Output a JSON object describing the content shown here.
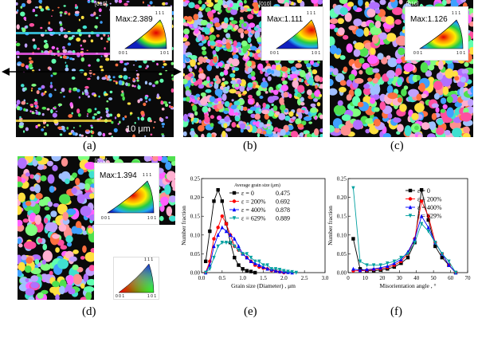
{
  "figure": {
    "panels": [
      {
        "id": "a",
        "label": "(a)",
        "dir": "[010]",
        "max": "Max:2.389",
        "ipf_corners": [
          "1 1 1",
          "0 0 1",
          "1 0 1"
        ],
        "scale": "10 μm"
      },
      {
        "id": "b",
        "label": "(b)",
        "dir": "[010]",
        "max": "Max:1.111",
        "ipf_corners": [
          "1 1 1",
          "0 0 1",
          "1 0 1"
        ]
      },
      {
        "id": "c",
        "label": "(c)",
        "dir": "[010]",
        "max": "Max:1.126",
        "ipf_corners": [
          "1 1 1",
          "0 0 1",
          "1 0 1"
        ]
      },
      {
        "id": "d",
        "label": "(d)",
        "dir": "[010]",
        "max": "Max:1.394",
        "ipf_corners": [
          "1 1 1",
          "0 0 1",
          "1 0 1"
        ],
        "key_corners": [
          "1 1 1",
          "0 0 1",
          "1 0 1"
        ]
      },
      {
        "id": "e",
        "label": "(e)"
      },
      {
        "id": "f",
        "label": "(f)"
      }
    ]
  },
  "chart_data": [
    {
      "type": "line",
      "panel": "e",
      "xlabel": "Grain size (Diameter) , μm",
      "ylabel": "Number fraction",
      "xlim": [
        0.0,
        3.0
      ],
      "ylim": [
        0.0,
        0.25
      ],
      "xticks": [
        "0.0",
        "0.5",
        "1.0",
        "1.5",
        "2.0",
        "2.5",
        "3.0"
      ],
      "yticks": [
        "0.00",
        "0.05",
        "0.10",
        "0.15",
        "0.20",
        "0.25"
      ],
      "legend_title": "Average grain size (μm)",
      "series": [
        {
          "name": "ε = 0",
          "avg": "0.475",
          "color": "#000000",
          "marker": "square",
          "x": [
            0.1,
            0.2,
            0.3,
            0.4,
            0.5,
            0.6,
            0.7,
            0.8,
            0.9,
            1.0,
            1.1,
            1.2,
            1.3
          ],
          "y": [
            0.03,
            0.11,
            0.19,
            0.22,
            0.19,
            0.13,
            0.08,
            0.04,
            0.02,
            0.01,
            0.005,
            0.003,
            0.0
          ]
        },
        {
          "name": "ε = 200%",
          "avg": "0.692",
          "color": "#ff0000",
          "marker": "circle",
          "x": [
            0.1,
            0.2,
            0.3,
            0.4,
            0.5,
            0.6,
            0.7,
            0.8,
            0.9,
            1.0,
            1.1,
            1.2,
            1.3,
            1.4,
            1.5,
            1.6,
            1.7,
            1.8,
            1.9,
            2.0
          ],
          "y": [
            0.0,
            0.03,
            0.09,
            0.12,
            0.15,
            0.13,
            0.1,
            0.07,
            0.06,
            0.05,
            0.04,
            0.03,
            0.02,
            0.015,
            0.012,
            0.01,
            0.006,
            0.004,
            0.002,
            0.0
          ]
        },
        {
          "name": "ε = 400%",
          "avg": "0.878",
          "color": "#0000ff",
          "marker": "triangle-up",
          "x": [
            0.1,
            0.2,
            0.3,
            0.4,
            0.5,
            0.6,
            0.7,
            0.8,
            0.9,
            1.0,
            1.1,
            1.2,
            1.3,
            1.4,
            1.5,
            1.6,
            1.7,
            1.8,
            1.9,
            2.0,
            2.1,
            2.2
          ],
          "y": [
            0.0,
            0.02,
            0.07,
            0.1,
            0.12,
            0.11,
            0.1,
            0.09,
            0.07,
            0.05,
            0.04,
            0.03,
            0.025,
            0.02,
            0.015,
            0.01,
            0.008,
            0.005,
            0.003,
            0.002,
            0.001,
            0.0
          ]
        },
        {
          "name": "ε = 629%",
          "avg": "0.889",
          "color": "#00a0a0",
          "marker": "triangle-down",
          "x": [
            0.1,
            0.2,
            0.3,
            0.4,
            0.5,
            0.6,
            0.7,
            0.8,
            0.9,
            1.0,
            1.1,
            1.2,
            1.3,
            1.4,
            1.5,
            1.6,
            1.7,
            1.8,
            1.9,
            2.0,
            2.1,
            2.2,
            2.3
          ],
          "y": [
            0.0,
            0.01,
            0.04,
            0.07,
            0.08,
            0.08,
            0.08,
            0.07,
            0.06,
            0.05,
            0.05,
            0.04,
            0.03,
            0.03,
            0.02,
            0.02,
            0.01,
            0.01,
            0.008,
            0.005,
            0.003,
            0.002,
            0.0
          ]
        }
      ]
    },
    {
      "type": "line",
      "panel": "f",
      "xlabel": "Misorientation angle , °",
      "ylabel": "Number fraction",
      "xlim": [
        0,
        70
      ],
      "ylim": [
        0.0,
        0.25
      ],
      "xticks": [
        "0",
        "10",
        "20",
        "30",
        "40",
        "50",
        "60",
        "70"
      ],
      "yticks": [
        "0.00",
        "0.05",
        "0.10",
        "0.15",
        "0.20",
        "0.25"
      ],
      "series": [
        {
          "name": "ε = 0",
          "color": "#000000",
          "marker": "square",
          "x": [
            3,
            7,
            11,
            15,
            19,
            23,
            27,
            31,
            35,
            39,
            43,
            47,
            51,
            55,
            59,
            63
          ],
          "y": [
            0.09,
            0.01,
            0.005,
            0.005,
            0.007,
            0.01,
            0.015,
            0.025,
            0.04,
            0.08,
            0.22,
            0.14,
            0.07,
            0.04,
            0.02,
            0.0
          ]
        },
        {
          "name": "ε = 200%",
          "color": "#ff0000",
          "marker": "circle",
          "x": [
            3,
            7,
            11,
            15,
            19,
            23,
            27,
            31,
            35,
            39,
            43,
            47,
            51,
            55,
            59,
            63
          ],
          "y": [
            0.005,
            0.005,
            0.006,
            0.008,
            0.01,
            0.014,
            0.02,
            0.03,
            0.05,
            0.09,
            0.19,
            0.15,
            0.08,
            0.05,
            0.02,
            0.0
          ]
        },
        {
          "name": "ε = 400%",
          "color": "#0000ff",
          "marker": "triangle-up",
          "x": [
            3,
            7,
            11,
            15,
            19,
            23,
            27,
            31,
            35,
            39,
            43,
            47,
            51,
            55,
            59,
            63
          ],
          "y": [
            0.01,
            0.006,
            0.008,
            0.01,
            0.013,
            0.017,
            0.025,
            0.035,
            0.055,
            0.09,
            0.15,
            0.12,
            0.08,
            0.05,
            0.02,
            0.0
          ]
        },
        {
          "name": "ε = 629%",
          "color": "#00a0a0",
          "marker": "triangle-down",
          "x": [
            3,
            7,
            11,
            15,
            19,
            23,
            27,
            31,
            35,
            39,
            43,
            47,
            51,
            55,
            59,
            63
          ],
          "y": [
            0.225,
            0.03,
            0.02,
            0.02,
            0.02,
            0.025,
            0.03,
            0.04,
            0.05,
            0.08,
            0.13,
            0.11,
            0.08,
            0.05,
            0.03,
            0.0
          ]
        }
      ]
    }
  ]
}
